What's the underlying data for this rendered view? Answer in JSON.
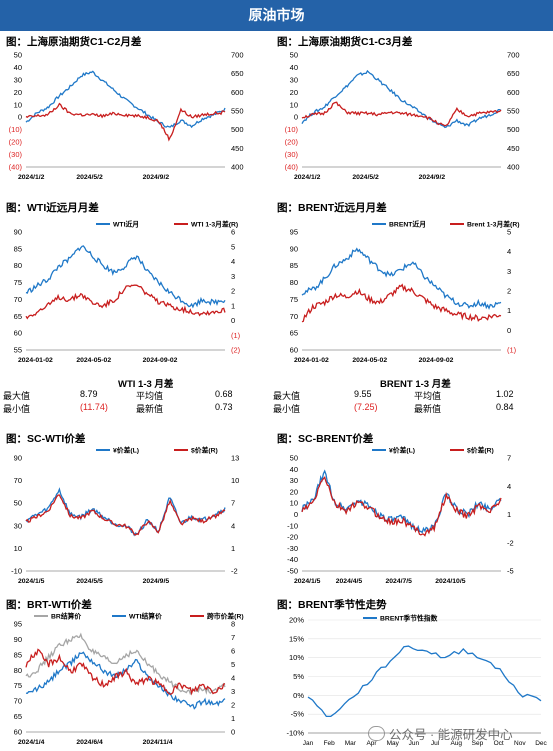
{
  "page": {
    "title": "原油市场",
    "watermark": "公众号 · 能源研发中心"
  },
  "panels": [
    {
      "title": "图：上海原油期货C1-C2月差"
    },
    {
      "title": "图：上海原油期货C1-C3月差"
    },
    {
      "title": "图：WTI近远月月差"
    },
    {
      "title": "图：BRENT近远月月差"
    },
    {
      "title": "图：SC-WTI价差"
    },
    {
      "title": "图：SC-BRENT价差"
    },
    {
      "title": "图：BRT-WTI价差"
    },
    {
      "title": "图：BRENT季节性走势"
    }
  ],
  "stats": [
    {
      "header": "WTI 1-3 月差",
      "max_label": "最大值",
      "max": "8.79",
      "avg_label": "平均值",
      "avg": "0.68",
      "min_label": "最小值",
      "min": "(11.74)",
      "latest_label": "最新值",
      "latest": "0.73"
    },
    {
      "header": "BRENT 1-3 月差",
      "max_label": "最大值",
      "max": "9.55",
      "avg_label": "平均值",
      "avg": "1.02",
      "min_label": "最小值",
      "min": "(7.25)",
      "latest_label": "最新值",
      "latest": "0.84"
    }
  ],
  "colors": {
    "blue": "#1f78c8",
    "red": "#c81e1e",
    "gray": "#a6a6a6",
    "banner": "#2462a8"
  },
  "chart_data": [
    {
      "type": "line",
      "title": "图：上海原油期货C1-C2月差",
      "x": [
        "2024/1/2",
        "2024/5/2",
        "2024/9/2"
      ],
      "left_axis": {
        "ticks": [
          "50",
          "40",
          "30",
          "20",
          "10",
          "0",
          "(10)",
          "(20)",
          "(30)",
          "(40)"
        ],
        "ylim": [
          -40,
          50
        ]
      },
      "right_axis": {
        "ticks": [
          "700",
          "650",
          "600",
          "550",
          "500",
          "450",
          "400"
        ],
        "ylim": [
          400,
          700
        ]
      },
      "series": [
        {
          "axis": "right",
          "color": "#1f78c8",
          "anchors": [
            520,
            545,
            560,
            590,
            615,
            645,
            655,
            630,
            605,
            580,
            560,
            540,
            520,
            505,
            525,
            510,
            530,
            540,
            555
          ]
        },
        {
          "axis": "left",
          "color": "#c81e1e",
          "anchors": [
            0,
            1,
            2,
            10,
            3,
            2,
            2,
            1,
            3,
            2,
            1,
            0,
            -3,
            -18,
            6,
            0,
            2,
            3,
            4
          ]
        }
      ]
    },
    {
      "type": "line",
      "title": "图：上海原油期货C1-C3月差",
      "x": [
        "2024/1/2",
        "2024/5/2",
        "2024/9/2"
      ],
      "left_axis": {
        "ticks": [
          "50",
          "40",
          "30",
          "20",
          "10",
          "0",
          "(10)",
          "(20)",
          "(30)",
          "(40)"
        ],
        "ylim": [
          -40,
          50
        ]
      },
      "right_axis": {
        "ticks": [
          "700",
          "650",
          "600",
          "550",
          "500",
          "450",
          "400"
        ],
        "ylim": [
          400,
          700
        ]
      },
      "series": [
        {
          "axis": "right",
          "color": "#1f78c8",
          "anchors": [
            520,
            545,
            560,
            590,
            615,
            645,
            655,
            630,
            605,
            580,
            560,
            540,
            520,
            505,
            525,
            510,
            530,
            540,
            555
          ]
        },
        {
          "axis": "left",
          "color": "#c81e1e",
          "anchors": [
            0,
            2,
            3,
            12,
            4,
            3,
            3,
            2,
            4,
            3,
            2,
            1,
            -3,
            -8,
            6,
            1,
            3,
            4,
            5
          ]
        }
      ]
    },
    {
      "type": "line",
      "title": "图：WTI近远月月差",
      "x": [
        "2024-01-02",
        "2024-05-02",
        "2024-09-02"
      ],
      "legend": [
        "WTI近月",
        "WTI 1-3月差(R)"
      ],
      "left_axis": {
        "ticks": [
          "90",
          "85",
          "80",
          "75",
          "70",
          "65",
          "60",
          "55"
        ],
        "ylim": [
          55,
          90
        ]
      },
      "right_axis": {
        "ticks": [
          "6",
          "5",
          "4",
          "3",
          "2",
          "1",
          "0",
          "(1)",
          "(2)"
        ],
        "ylim": [
          -2,
          6
        ]
      },
      "series": [
        {
          "name": "WTI近月",
          "axis": "left",
          "color": "#1f78c8",
          "anchors": [
            72,
            74,
            76,
            80,
            82,
            86,
            83,
            80,
            78,
            80,
            83,
            78,
            75,
            72,
            70,
            68,
            70,
            69,
            70
          ]
        },
        {
          "name": "WTI 1-3月差(R)",
          "axis": "right",
          "color": "#c81e1e",
          "anchors": [
            0.2,
            0.6,
            1.0,
            1.6,
            1.4,
            1.8,
            1.2,
            1.0,
            1.4,
            2.2,
            2.4,
            1.8,
            1.2,
            1.0,
            0.8,
            0.6,
            0.5,
            0.6,
            0.7
          ]
        }
      ]
    },
    {
      "type": "line",
      "title": "图：BRENT近远月月差",
      "x": [
        "2024-01-02",
        "2024-05-02",
        "2024-09-02"
      ],
      "legend": [
        "BRENT近月",
        "Brent 1-3月差(R)"
      ],
      "left_axis": {
        "ticks": [
          "95",
          "90",
          "85",
          "80",
          "75",
          "70",
          "65",
          "60"
        ],
        "ylim": [
          60,
          95
        ]
      },
      "right_axis": {
        "ticks": [
          "5",
          "4",
          "3",
          "2",
          "1",
          "0",
          "(1)"
        ],
        "ylim": [
          -1,
          5
        ]
      },
      "series": [
        {
          "name": "BRENT近月",
          "axis": "left",
          "color": "#1f78c8",
          "anchors": [
            77,
            78,
            81,
            85,
            87,
            90,
            87,
            84,
            82,
            84,
            86,
            82,
            79,
            76,
            74,
            73,
            74,
            73,
            74
          ]
        },
        {
          "name": "Brent 1-3月差(R)",
          "axis": "right",
          "color": "#c81e1e",
          "anchors": [
            0.5,
            1.2,
            1.4,
            1.8,
            1.7,
            2.0,
            1.6,
            1.4,
            1.8,
            2.2,
            2.0,
            1.6,
            1.2,
            1.0,
            0.8,
            0.7,
            0.6,
            0.7,
            0.8
          ]
        }
      ]
    },
    {
      "type": "line",
      "title": "图：SC-WTI价差",
      "x": [
        "2024/1/5",
        "2024/5/5",
        "2024/9/5"
      ],
      "legend": [
        "¥价差(L)",
        "$价差(R)"
      ],
      "left_axis": {
        "ticks": [
          "90",
          "70",
          "50",
          "30",
          "10",
          "-10"
        ],
        "ylim": [
          -10,
          90
        ]
      },
      "right_axis": {
        "ticks": [
          "13",
          "10",
          "7",
          "4",
          "1",
          "-2"
        ],
        "ylim": [
          -2,
          13
        ]
      },
      "series": [
        {
          "name": "¥价差(L)",
          "axis": "left",
          "color": "#1f78c8",
          "anchors": [
            35,
            40,
            45,
            62,
            40,
            38,
            45,
            38,
            32,
            30,
            22,
            35,
            25,
            55,
            32,
            38,
            35,
            40,
            45
          ]
        },
        {
          "name": "$价差(R)",
          "axis": "right",
          "color": "#c81e1e",
          "anchors": [
            4.5,
            5.2,
            6,
            8.3,
            5.3,
            5,
            6,
            5,
            4.2,
            4,
            2.8,
            4.6,
            3.2,
            7.3,
            4.2,
            5,
            4.6,
            5.2,
            6
          ]
        }
      ]
    },
    {
      "type": "line",
      "title": "图：SC-BRENT价差",
      "x": [
        "2024/1/5",
        "2024/4/5",
        "2024/7/5",
        "2024/10/5"
      ],
      "legend": [
        "¥价差(L)",
        "$价差(R)"
      ],
      "left_axis": {
        "ticks": [
          "50",
          "40",
          "30",
          "20",
          "10",
          "0",
          "-10",
          "-20",
          "-30",
          "-40",
          "-50"
        ],
        "ylim": [
          -50,
          50
        ]
      },
      "right_axis": {
        "ticks": [
          "7",
          "4",
          "1",
          "-2",
          "-5"
        ],
        "ylim": [
          -5,
          7
        ]
      },
      "series": [
        {
          "name": "¥价差(L)",
          "axis": "left",
          "color": "#1f78c8",
          "anchors": [
            5,
            12,
            38,
            10,
            5,
            12,
            8,
            0,
            -5,
            -3,
            -10,
            -15,
            -10,
            18,
            5,
            0,
            10,
            5,
            15
          ]
        },
        {
          "name": "$价差(R)",
          "axis": "right",
          "color": "#c81e1e",
          "anchors": [
            1.4,
            2.2,
            5.2,
            2,
            1.4,
            2.2,
            1.8,
            0.8,
            0.2,
            0.4,
            -0.4,
            -1,
            -0.4,
            3,
            1.4,
            0.8,
            2,
            1.4,
            2.6
          ]
        }
      ]
    },
    {
      "type": "line",
      "title": "图：BRT-WTI价差",
      "x": [
        "2024/1/4",
        "2024/6/4",
        "2024/11/4"
      ],
      "legend": [
        "BR结算价",
        "WTI结算价",
        "跨市价差(R)"
      ],
      "left_axis": {
        "ticks": [
          "95",
          "90",
          "85",
          "80",
          "75",
          "70",
          "65",
          "60"
        ],
        "ylim": [
          60,
          95
        ]
      },
      "right_axis": {
        "ticks": [
          "8",
          "7",
          "6",
          "5",
          "4",
          "3",
          "2",
          "1",
          "0"
        ],
        "ylim": [
          0,
          8
        ]
      },
      "series": [
        {
          "name": "BR结算价",
          "axis": "left",
          "color": "#a6a6a6",
          "anchors": [
            78,
            80,
            84,
            88,
            90,
            91,
            86,
            84,
            82,
            85,
            86,
            82,
            79,
            76,
            74,
            73,
            74,
            73,
            75
          ]
        },
        {
          "name": "WTI结算价",
          "axis": "left",
          "color": "#1f78c8",
          "anchors": [
            72,
            74,
            76,
            80,
            82,
            86,
            83,
            80,
            78,
            80,
            83,
            78,
            75,
            72,
            70,
            68,
            70,
            69,
            70
          ]
        },
        {
          "name": "跨市价差(R)",
          "axis": "right",
          "color": "#c81e1e",
          "anchors": [
            5,
            6,
            5,
            5.5,
            4.5,
            5,
            4,
            3.5,
            4,
            4.5,
            3.5,
            4,
            3.5,
            3,
            3.5,
            3,
            3.5,
            3,
            3.5
          ]
        }
      ]
    },
    {
      "type": "line",
      "title": "图：BRENT季节性走势",
      "categories": [
        "Jan",
        "Feb",
        "Mar",
        "Apr",
        "May",
        "Jun",
        "Jul",
        "Aug",
        "Sep",
        "Oct",
        "Nov",
        "Dec"
      ],
      "legend": [
        "BRENT季节性指数"
      ],
      "left_axis": {
        "ticks": [
          "20%",
          "15%",
          "10%",
          "5%",
          "0%",
          "-5%",
          "-10%"
        ],
        "ylim": [
          -10,
          20
        ]
      },
      "series": [
        {
          "name": "BRENT季节性指数",
          "axis": "left",
          "color": "#1f78c8",
          "anchors": [
            0,
            -6,
            -2,
            3,
            8,
            13,
            12,
            10,
            12,
            10,
            6,
            0,
            -1
          ]
        }
      ]
    }
  ]
}
